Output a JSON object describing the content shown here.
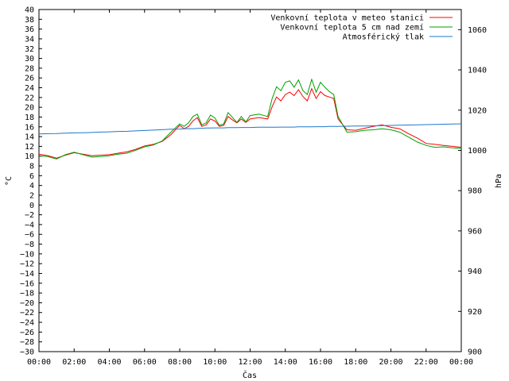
{
  "chart_data": {
    "type": "line",
    "xlabel": "Čas",
    "ylabel_left": "°C",
    "ylabel_right": "hPa",
    "x_ticks": [
      "00:00",
      "02:00",
      "04:00",
      "06:00",
      "08:00",
      "10:00",
      "12:00",
      "14:00",
      "16:00",
      "18:00",
      "20:00",
      "22:00",
      "00:00"
    ],
    "ylim_left": [
      -30,
      40
    ],
    "ylim_right": [
      900,
      1070
    ],
    "y_ticks_left_step": 2,
    "y_ticks_right": [
      900,
      920,
      940,
      960,
      980,
      1000,
      1020,
      1040,
      1060
    ],
    "x_hours": [
      0,
      0.5,
      1,
      1.5,
      2,
      2.5,
      3,
      3.5,
      4,
      4.5,
      5,
      5.5,
      6,
      6.5,
      7,
      7.5,
      8,
      8.25,
      8.5,
      8.75,
      9,
      9.25,
      9.5,
      9.75,
      10,
      10.25,
      10.5,
      10.75,
      11,
      11.25,
      11.5,
      11.75,
      12,
      12.5,
      13,
      13.25,
      13.5,
      13.75,
      14,
      14.25,
      14.5,
      14.75,
      15,
      15.25,
      15.5,
      15.75,
      16,
      16.25,
      16.5,
      16.75,
      17,
      17.5,
      18,
      18.5,
      19,
      19.5,
      20,
      20.5,
      21,
      21.5,
      22,
      22.5,
      23,
      23.5,
      24
    ],
    "series": [
      {
        "name": "Venkovní teplota v meteo stanici",
        "color": "#ff0000",
        "axis": "left",
        "values": [
          10.4,
          10.1,
          9.6,
          10.2,
          10.7,
          10.4,
          10.1,
          10.2,
          10.3,
          10.6,
          10.9,
          11.4,
          12.1,
          12.4,
          13.0,
          14.4,
          16.3,
          15.6,
          16.1,
          17.2,
          17.9,
          16.1,
          16.4,
          17.6,
          17.2,
          16.1,
          16.3,
          18.1,
          17.4,
          16.8,
          17.6,
          16.9,
          17.6,
          17.9,
          17.6,
          20.1,
          22.1,
          21.3,
          22.6,
          23.1,
          22.4,
          23.6,
          22.2,
          21.3,
          23.8,
          21.8,
          23.2,
          22.4,
          22.1,
          21.8,
          17.6,
          15.4,
          15.3,
          15.7,
          16.1,
          16.4,
          15.9,
          15.6,
          14.6,
          13.7,
          12.6,
          12.4,
          12.2,
          12.0,
          11.8
        ]
      },
      {
        "name": "Venkovní teplota 5 cm nad zemí",
        "color": "#00a000",
        "axis": "left",
        "values": [
          10.1,
          9.9,
          9.4,
          10.3,
          10.8,
          10.3,
          9.8,
          9.9,
          10.1,
          10.4,
          10.6,
          11.2,
          11.9,
          12.3,
          13.1,
          14.9,
          16.6,
          16.1,
          16.8,
          18.1,
          18.6,
          16.4,
          16.8,
          18.4,
          17.8,
          16.3,
          16.6,
          18.9,
          17.9,
          16.9,
          18.1,
          17.0,
          18.3,
          18.6,
          18.1,
          21.8,
          24.2,
          23.4,
          25.1,
          25.4,
          24.1,
          25.6,
          23.4,
          22.6,
          25.7,
          23.1,
          25.1,
          24.1,
          23.2,
          22.6,
          18.1,
          14.9,
          15.0,
          15.3,
          15.4,
          15.6,
          15.4,
          14.9,
          13.9,
          12.9,
          12.2,
          11.8,
          11.9,
          11.7,
          11.6
        ]
      },
      {
        "name": "Atmosférický tlak",
        "color": "#1f77cc",
        "axis": "right",
        "values": [
          1008.2,
          1008.3,
          1008.4,
          1008.6,
          1008.7,
          1008.8,
          1008.9,
          1009.1,
          1009.2,
          1009.4,
          1009.5,
          1009.7,
          1009.9,
          1010.1,
          1010.3,
          1010.5,
          1010.6,
          1010.7,
          1010.8,
          1010.8,
          1010.9,
          1011.0,
          1011.1,
          1011.1,
          1011.2,
          1011.2,
          1011.2,
          1011.3,
          1011.3,
          1011.3,
          1011.4,
          1011.4,
          1011.4,
          1011.5,
          1011.5,
          1011.5,
          1011.5,
          1011.6,
          1011.6,
          1011.6,
          1011.6,
          1011.7,
          1011.7,
          1011.7,
          1011.7,
          1011.8,
          1011.8,
          1011.8,
          1011.9,
          1011.9,
          1011.9,
          1012.0,
          1012.1,
          1012.1,
          1012.2,
          1012.3,
          1012.4,
          1012.5,
          1012.6,
          1012.7,
          1012.8,
          1012.9,
          1013.0,
          1013.1,
          1013.2
        ]
      }
    ],
    "legend_position": "top-right",
    "grid": false
  }
}
